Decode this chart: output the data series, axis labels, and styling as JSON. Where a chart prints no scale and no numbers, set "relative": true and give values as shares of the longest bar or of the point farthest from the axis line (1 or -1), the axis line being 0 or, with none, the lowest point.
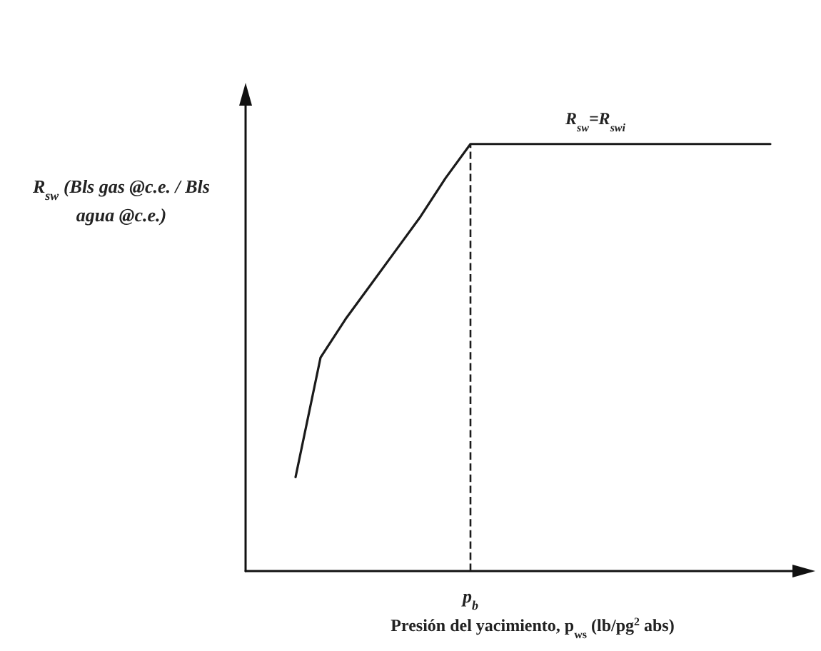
{
  "chart_data": {
    "type": "line",
    "relative": true,
    "xlabel": "Presión del yacimiento, p$_{ws}$ (lb/pg$^{2}$ abs)",
    "ylabel": "R$_{sw}$ (Bls gas @c.e. / Bls agua @c.e.)",
    "categories": [
      null,
      null,
      null,
      null,
      null,
      null,
      null,
      null,
      null,
      null,
      null,
      null,
      null,
      null,
      null,
      null,
      null,
      null,
      null,
      null,
      null,
      null,
      null
    ],
    "series": [
      {
        "color": "#1a1a1a",
        "values": [
          null,
          null,
          0.22,
          0.5,
          0.59,
          0.67,
          0.75,
          0.83,
          0.92,
          1,
          1,
          1,
          1,
          1,
          1,
          1,
          1,
          1,
          1,
          1,
          1,
          1,
          null
        ]
      }
    ],
    "annotations": [
      "R$_{sw}$=R$_{swi}$",
      "p$_{b}$"
    ],
    "marker": "none",
    "line_style": "solid",
    "grid": false
  }
}
